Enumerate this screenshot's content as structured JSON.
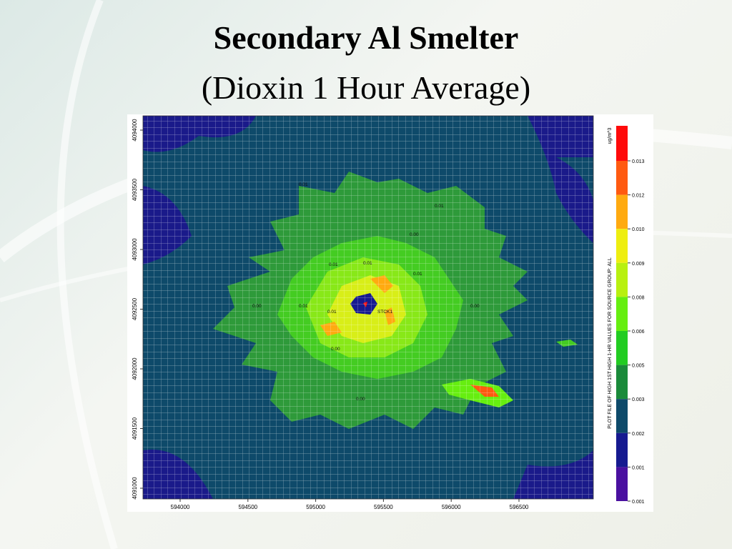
{
  "slide": {
    "title": "Secondary Al Smelter",
    "subtitle": "(Dioxin 1 Hour Average)"
  },
  "map": {
    "x_ticks": [
      "594000",
      "594500",
      "595000",
      "595500",
      "596000",
      "596500"
    ],
    "y_ticks": [
      "4094000",
      "4093500",
      "4093000",
      "4092500",
      "4092000",
      "4091500",
      "4091000"
    ],
    "side_label": "PLOT FILE OF  HIGH 1ST HIGH 1-HR VALUES FOR SOURCE GROUP: ALL",
    "source_label": "STCK1",
    "contour_labels": [
      "0.01",
      "0.00",
      "0.01",
      "0.00",
      "0.01",
      "0.01",
      "0.01",
      "0.01",
      "0.00",
      "0.01",
      "0.00",
      "0.00"
    ]
  },
  "colorbar": {
    "unit": "ug/m^3",
    "labels": [
      "0.013",
      "0.012",
      "0.010",
      "0.009",
      "0.008",
      "0.006",
      "0.005",
      "0.003",
      "0.002",
      "0.001",
      "0.001"
    ],
    "colors": [
      "#ff0a0a",
      "#ff5a10",
      "#ffaa10",
      "#eeee10",
      "#b8f010",
      "#66ee10",
      "#22cc22",
      "#1a8a3a",
      "#0e4a6a",
      "#161a90",
      "#4a10a0"
    ]
  }
}
